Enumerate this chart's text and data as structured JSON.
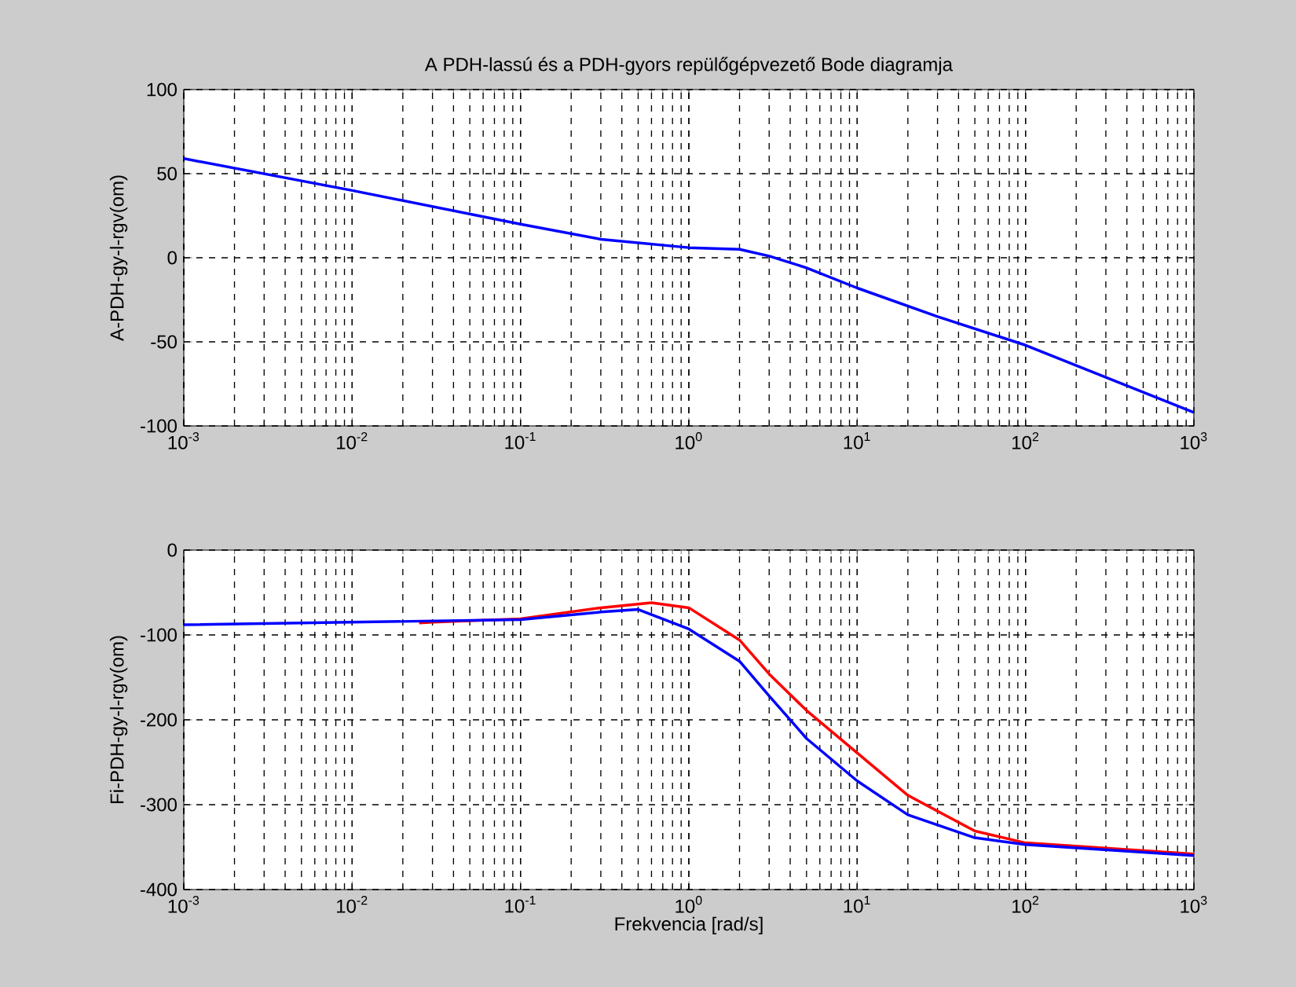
{
  "chart_data": [
    {
      "type": "line",
      "title": "A PDH-lassú és a PDH-gyors repülőgépvezető Bode diagramja",
      "ylabel": "A-PDH-gy-l-rgv(om)",
      "log": "x",
      "grid": true,
      "xlim": [
        0.001,
        1000
      ],
      "ylim": [
        -100,
        100
      ],
      "xticks": [
        {
          "value": 0.001,
          "label": "10$^{-3}$"
        },
        {
          "value": 0.01,
          "label": "10$^{-2}$"
        },
        {
          "value": 0.1,
          "label": "10$^{-1}$"
        },
        {
          "value": 1,
          "label": "10$^{0}$"
        },
        {
          "value": 10,
          "label": "10$^{1}$"
        },
        {
          "value": 100,
          "label": "10$^{2}$"
        },
        {
          "value": 1000,
          "label": "10$^{3}$"
        }
      ],
      "yticks": [
        -100,
        -50,
        0,
        50,
        100
      ],
      "series": [
        {
          "color": "#0000ff",
          "x": [
            0.001,
            0.01,
            0.1,
            0.3,
            1,
            2,
            3,
            5,
            10,
            30,
            100,
            1000
          ],
          "values": [
            59,
            40,
            20,
            11,
            6,
            5,
            1,
            -6,
            -18,
            -35,
            -52,
            -92
          ]
        }
      ]
    },
    {
      "type": "line",
      "xlabel": "Frekvencia [rad/s]",
      "ylabel": "Fi-PDH-gy-l-rgv(om)",
      "log": "x",
      "grid": true,
      "xlim": [
        0.001,
        1000
      ],
      "ylim": [
        -400,
        0
      ],
      "xticks": [
        {
          "value": 0.001,
          "label": "10$^{-3}$"
        },
        {
          "value": 0.01,
          "label": "10$^{-2}$"
        },
        {
          "value": 0.1,
          "label": "10$^{-1}$"
        },
        {
          "value": 1,
          "label": "10$^{0}$"
        },
        {
          "value": 10,
          "label": "10$^{1}$"
        },
        {
          "value": 100,
          "label": "10$^{2}$"
        },
        {
          "value": 1000,
          "label": "10$^{3}$"
        }
      ],
      "yticks": [
        -400,
        -300,
        -200,
        -100,
        0
      ],
      "series": [
        {
          "color": "#ff0000",
          "x": [
            0.025,
            0.03,
            0.1,
            0.3,
            0.6,
            1,
            2,
            3,
            5,
            10,
            20,
            50,
            100,
            1000
          ],
          "values": [
            -86,
            -85,
            -81,
            -68,
            -62,
            -68,
            -106,
            -146,
            -189,
            -239,
            -289,
            -331,
            -345,
            -358
          ]
        },
        {
          "color": "#0000ff",
          "x": [
            0.001,
            0.1,
            0.3,
            0.5,
            1,
            2,
            3,
            5,
            10,
            20,
            50,
            100,
            1000
          ],
          "values": [
            -88,
            -82,
            -73,
            -70,
            -93,
            -131,
            -172,
            -222,
            -272,
            -312,
            -339,
            -347,
            -360
          ]
        }
      ]
    }
  ]
}
